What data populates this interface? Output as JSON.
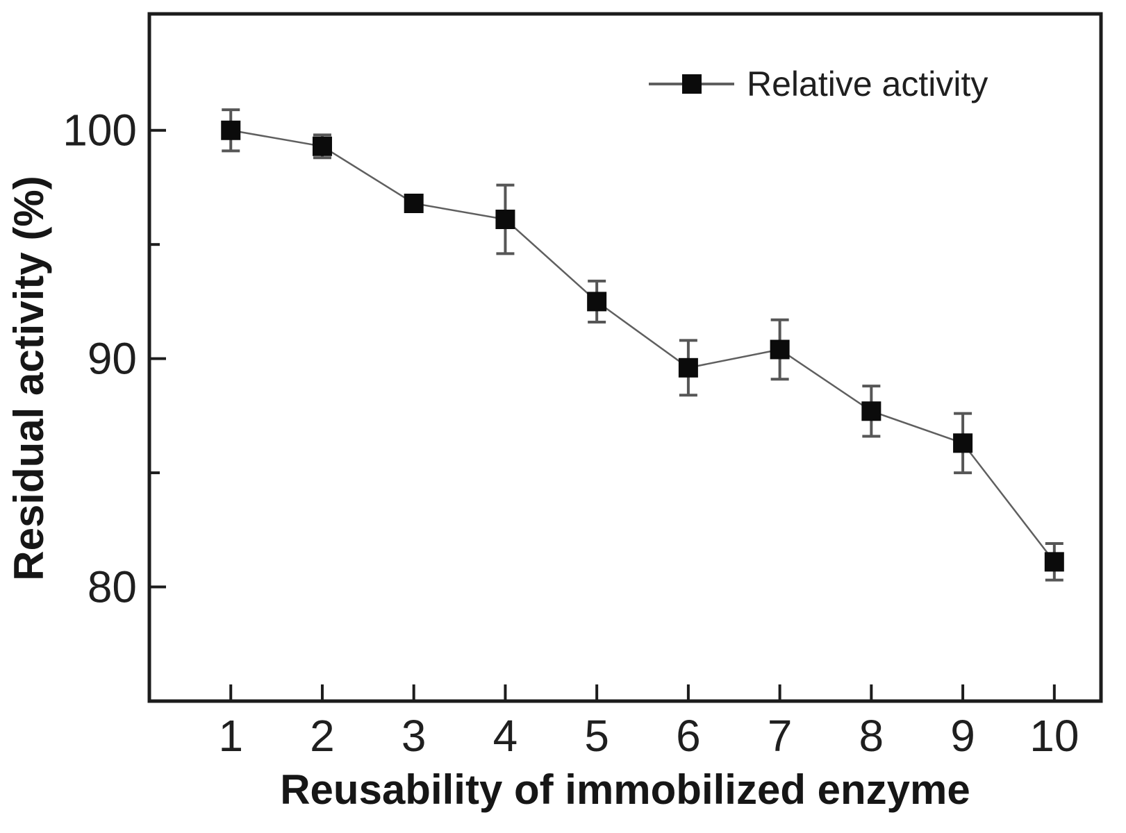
{
  "chart_data": {
    "type": "line",
    "title": "",
    "xlabel": "Reusability of immobilized enzyme",
    "ylabel": "Residual activity (%)",
    "legend_position": "top-right",
    "grid": false,
    "categories": [
      1,
      2,
      3,
      4,
      5,
      6,
      7,
      8,
      9,
      10
    ],
    "series": [
      {
        "name": "Relative activity",
        "values": [
          100.0,
          99.3,
          96.8,
          96.1,
          92.5,
          89.6,
          90.4,
          87.7,
          86.3,
          81.1
        ],
        "errors": [
          0.9,
          0.5,
          0.2,
          1.5,
          0.9,
          1.2,
          1.3,
          1.1,
          1.3,
          0.8
        ],
        "marker": "filled-square"
      }
    ],
    "legend": [
      {
        "label": "Relative activity",
        "marker": "filled-square"
      }
    ],
    "xlim": [
      0.11,
      10.51
    ],
    "ylim": [
      75.0,
      105.1
    ],
    "xticks": [
      1,
      2,
      3,
      4,
      5,
      6,
      7,
      8,
      9,
      10
    ],
    "yticks_major": [
      80,
      90,
      100
    ],
    "yticks_minor": [
      85,
      95
    ],
    "colors": {
      "marker": "#0b0b0b",
      "line": "#5f5f5f",
      "error_bar": "#565656",
      "axis": "#1c1c1c",
      "text": "#1f1f1f",
      "background": "#ffffff"
    }
  }
}
